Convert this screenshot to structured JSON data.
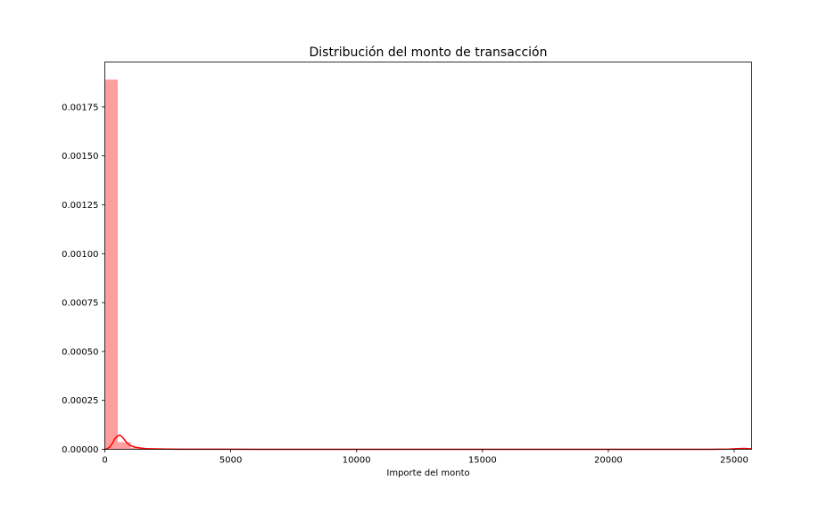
{
  "chart_data": {
    "type": "bar",
    "title": "Distribución del monto de transacción",
    "xlabel": "Importe del monto",
    "ylabel": "",
    "xlim": [
      0,
      25691
    ],
    "ylim": [
      0,
      0.00198
    ],
    "x_ticks": [
      0,
      5000,
      10000,
      15000,
      20000,
      25000
    ],
    "y_ticks": [
      0.0,
      0.00025,
      0.0005,
      0.00075,
      0.001,
      0.00125,
      0.0015,
      0.00175
    ],
    "x_tick_labels": [
      "0",
      "5000",
      "10000",
      "15000",
      "20000",
      "25000"
    ],
    "y_tick_labels": [
      "0.00000",
      "0.00025",
      "0.00050",
      "0.00075",
      "0.00100",
      "0.00125",
      "0.00150",
      "0.00175"
    ],
    "histogram": {
      "bin_edges": [
        0,
        514,
        1028,
        1542,
        2056,
        2570,
        3084
      ],
      "values": [
        0.00189,
        3.6e-05,
        8.5e-06,
        3e-06,
        1.2e-06,
        5e-07
      ],
      "color": "#ff9999"
    },
    "kde": {
      "x": [
        0,
        100,
        200,
        300,
        400,
        500,
        600,
        700,
        800,
        900,
        1000,
        1200,
        1400,
        1600,
        1800,
        2000,
        2500,
        3000,
        4000,
        6000,
        10000,
        15000,
        20000,
        24000,
        24800,
        25100,
        25400,
        25691
      ],
      "y": [
        0.0,
        3e-06,
        1.2e-05,
        3e-05,
        5.5e-05,
        6.8e-05,
        7.2e-05,
        6.2e-05,
        4.5e-05,
        3e-05,
        2e-05,
        1.1e-05,
        7e-06,
        4e-06,
        3e-06,
        2.2e-06,
        1.2e-06,
        7e-07,
        4e-07,
        2e-07,
        1e-07,
        1e-07,
        1e-07,
        2e-07,
        1.2e-06,
        3.5e-06,
        4.5e-06,
        2e-06
      ],
      "color": "#ff0000"
    },
    "grid": false,
    "legend": "none"
  }
}
